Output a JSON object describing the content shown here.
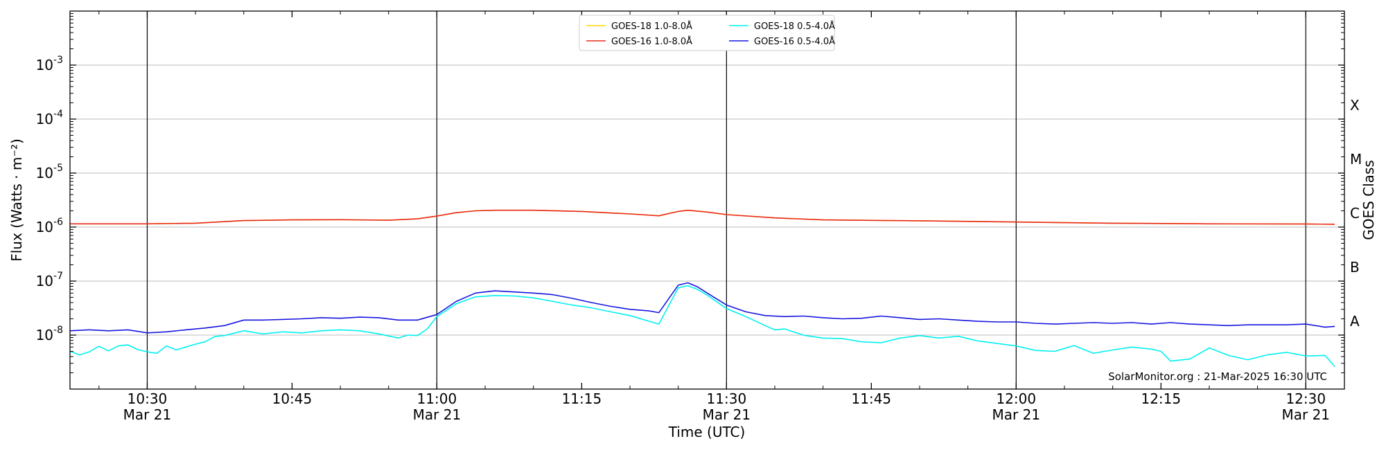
{
  "chart_data": {
    "type": "line",
    "xlabel": "Time (UTC)",
    "ylabel": "Flux (Watts · m⁻²)",
    "y2label": "GOES Class",
    "yscale": "log",
    "ylim": [
      1e-09,
      0.01
    ],
    "xlim": [
      "10:22",
      "12:34"
    ],
    "grid": "horizontal",
    "legend_position": "top-center",
    "credit": "SolarMonitor.org : 21-Mar-2025 16:30 UTC",
    "x_ticks": [
      {
        "time": "10:30",
        "date": "Mar 21"
      },
      {
        "time": "10:45",
        "date": ""
      },
      {
        "time": "11:00",
        "date": "Mar 21"
      },
      {
        "time": "11:15",
        "date": ""
      },
      {
        "time": "11:30",
        "date": "Mar 21"
      },
      {
        "time": "11:45",
        "date": ""
      },
      {
        "time": "12:00",
        "date": "Mar 21"
      },
      {
        "time": "12:15",
        "date": ""
      },
      {
        "time": "12:30",
        "date": "Mar 21"
      }
    ],
    "y_ticks": [
      {
        "exp": "-8",
        "value": 1e-08
      },
      {
        "exp": "-7",
        "value": 1e-07
      },
      {
        "exp": "-6",
        "value": 1e-06
      },
      {
        "exp": "-5",
        "value": 1e-05
      },
      {
        "exp": "-4",
        "value": 0.0001
      },
      {
        "exp": "-3",
        "value": 0.001
      }
    ],
    "goes_classes": [
      {
        "label": "A",
        "value": 1.8e-08
      },
      {
        "label": "B",
        "value": 1.8e-07
      },
      {
        "label": "C",
        "value": 1.8e-06
      },
      {
        "label": "M",
        "value": 1.8e-05
      },
      {
        "label": "X",
        "value": 0.00018
      }
    ],
    "vertical_lines": [
      "10:30",
      "11:00",
      "11:30",
      "12:00",
      "12:30"
    ],
    "series": [
      {
        "name": "GOES-18 1.0-8.0Å",
        "color": "#ffd700",
        "x": [
          "10:22",
          "10:30",
          "10:35",
          "10:40",
          "10:45",
          "10:50",
          "10:55",
          "10:58",
          "11:00",
          "11:02",
          "11:04",
          "11:06",
          "11:10",
          "11:15",
          "11:20",
          "11:23",
          "11:25",
          "11:26",
          "11:28",
          "11:30",
          "11:35",
          "11:40",
          "11:45",
          "11:50",
          "12:00",
          "12:10",
          "12:20",
          "12:30",
          "12:33"
        ],
        "values": [
          1.15e-06,
          1.15e-06,
          1.18e-06,
          1.32e-06,
          1.36e-06,
          1.37e-06,
          1.34e-06,
          1.42e-06,
          1.6e-06,
          1.85e-06,
          2e-06,
          2.05e-06,
          2.05e-06,
          1.95e-06,
          1.75e-06,
          1.62e-06,
          1.95e-06,
          2.05e-06,
          1.9e-06,
          1.7e-06,
          1.48e-06,
          1.36e-06,
          1.33e-06,
          1.31e-06,
          1.24e-06,
          1.18e-06,
          1.15e-06,
          1.14e-06,
          1.13e-06
        ]
      },
      {
        "name": "GOES-16 1.0-8.0Å",
        "color": "#e8291c",
        "x": [
          "10:22",
          "10:30",
          "10:35",
          "10:40",
          "10:45",
          "10:50",
          "10:55",
          "10:58",
          "11:00",
          "11:02",
          "11:04",
          "11:06",
          "11:10",
          "11:15",
          "11:20",
          "11:23",
          "11:25",
          "11:26",
          "11:28",
          "11:30",
          "11:35",
          "11:40",
          "11:45",
          "11:50",
          "12:00",
          "12:10",
          "12:20",
          "12:30",
          "12:33"
        ],
        "values": [
          1.15e-06,
          1.15e-06,
          1.18e-06,
          1.32e-06,
          1.36e-06,
          1.37e-06,
          1.34e-06,
          1.42e-06,
          1.6e-06,
          1.85e-06,
          2e-06,
          2.05e-06,
          2.05e-06,
          1.95e-06,
          1.75e-06,
          1.62e-06,
          1.95e-06,
          2.05e-06,
          1.9e-06,
          1.7e-06,
          1.48e-06,
          1.36e-06,
          1.33e-06,
          1.31e-06,
          1.24e-06,
          1.18e-06,
          1.15e-06,
          1.14e-06,
          1.13e-06
        ]
      },
      {
        "name": "GOES-18 0.5-4.0Å",
        "color": "#00f0f0",
        "x": [
          "10:22",
          "10:23",
          "10:24",
          "10:25",
          "10:26",
          "10:27",
          "10:28",
          "10:29",
          "10:30",
          "10:31",
          "10:32",
          "10:33",
          "10:34",
          "10:35",
          "10:36",
          "10:37",
          "10:38",
          "10:40",
          "10:42",
          "10:44",
          "10:46",
          "10:48",
          "10:50",
          "10:52",
          "10:54",
          "10:56",
          "10:57",
          "10:58",
          "10:59",
          "11:00",
          "11:02",
          "11:04",
          "11:06",
          "11:08",
          "11:10",
          "11:12",
          "11:14",
          "11:16",
          "11:18",
          "11:20",
          "11:22",
          "11:23",
          "11:25",
          "11:26",
          "11:27",
          "11:28",
          "11:30",
          "11:32",
          "11:34",
          "11:35",
          "11:36",
          "11:38",
          "11:40",
          "11:42",
          "11:44",
          "11:46",
          "11:48",
          "11:50",
          "11:52",
          "11:54",
          "11:56",
          "11:58",
          "12:00",
          "12:02",
          "12:04",
          "12:06",
          "12:08",
          "12:10",
          "12:12",
          "12:14",
          "12:15",
          "12:16",
          "12:18",
          "12:20",
          "12:22",
          "12:24",
          "12:26",
          "12:28",
          "12:30",
          "12:32",
          "12:33"
        ],
        "values": [
          5e-09,
          4.3e-09,
          4.9e-09,
          6.2e-09,
          5.1e-09,
          6.3e-09,
          6.6e-09,
          5.4e-09,
          4.9e-09,
          4.6e-09,
          6.3e-09,
          5.3e-09,
          6e-09,
          6.8e-09,
          7.5e-09,
          9.4e-09,
          9.8e-09,
          1.2e-08,
          1.05e-08,
          1.15e-08,
          1.1e-08,
          1.2e-08,
          1.25e-08,
          1.2e-08,
          1.05e-08,
          8.8e-09,
          1e-08,
          9.8e-09,
          1.3e-08,
          2.2e-08,
          3.8e-08,
          5.1e-08,
          5.4e-08,
          5.3e-08,
          4.9e-08,
          4.2e-08,
          3.6e-08,
          3.2e-08,
          2.7e-08,
          2.3e-08,
          1.8e-08,
          1.6e-08,
          7.5e-08,
          8.2e-08,
          7e-08,
          5.5e-08,
          3.1e-08,
          2.2e-08,
          1.5e-08,
          1.25e-08,
          1.3e-08,
          9.9e-09,
          8.8e-09,
          8.6e-09,
          7.5e-09,
          7.2e-09,
          8.8e-09,
          9.8e-09,
          8.8e-09,
          9.5e-09,
          7.8e-09,
          7e-09,
          6.3e-09,
          5.2e-09,
          5e-09,
          6.4e-09,
          4.6e-09,
          5.3e-09,
          6e-09,
          5.5e-09,
          5e-09,
          3.3e-09,
          3.6e-09,
          5.8e-09,
          4.2e-09,
          3.5e-09,
          4.3e-09,
          4.8e-09,
          4.1e-09,
          4.2e-09,
          2.6e-09
        ]
      },
      {
        "name": "GOES-16 0.5-4.0Å",
        "color": "#1515e0",
        "x": [
          "10:22",
          "10:24",
          "10:26",
          "10:28",
          "10:30",
          "10:32",
          "10:34",
          "10:36",
          "10:38",
          "10:40",
          "10:42",
          "10:44",
          "10:46",
          "10:48",
          "10:50",
          "10:52",
          "10:54",
          "10:56",
          "10:58",
          "11:00",
          "11:02",
          "11:04",
          "11:06",
          "11:08",
          "11:10",
          "11:12",
          "11:14",
          "11:16",
          "11:18",
          "11:20",
          "11:22",
          "11:23",
          "11:25",
          "11:26",
          "11:27",
          "11:28",
          "11:30",
          "11:32",
          "11:34",
          "11:36",
          "11:38",
          "11:40",
          "11:42",
          "11:44",
          "11:46",
          "11:48",
          "11:50",
          "11:52",
          "11:54",
          "11:56",
          "11:58",
          "12:00",
          "12:02",
          "12:04",
          "12:06",
          "12:08",
          "12:10",
          "12:12",
          "12:14",
          "12:16",
          "12:18",
          "12:20",
          "12:22",
          "12:24",
          "12:26",
          "12:28",
          "12:30",
          "12:32",
          "12:33"
        ],
        "values": [
          1.2e-08,
          1.25e-08,
          1.2e-08,
          1.25e-08,
          1.1e-08,
          1.15e-08,
          1.25e-08,
          1.35e-08,
          1.5e-08,
          1.9e-08,
          1.9e-08,
          1.95e-08,
          2e-08,
          2.1e-08,
          2.05e-08,
          2.15e-08,
          2.1e-08,
          1.9e-08,
          1.9e-08,
          2.4e-08,
          4.2e-08,
          6e-08,
          6.6e-08,
          6.3e-08,
          6e-08,
          5.6e-08,
          4.8e-08,
          4e-08,
          3.4e-08,
          3e-08,
          2.8e-08,
          2.6e-08,
          8.4e-08,
          9.3e-08,
          7.8e-08,
          6e-08,
          3.6e-08,
          2.7e-08,
          2.3e-08,
          2.2e-08,
          2.25e-08,
          2.1e-08,
          2e-08,
          2.05e-08,
          2.25e-08,
          2.1e-08,
          1.95e-08,
          2e-08,
          1.9e-08,
          1.8e-08,
          1.75e-08,
          1.75e-08,
          1.65e-08,
          1.6e-08,
          1.65e-08,
          1.7e-08,
          1.65e-08,
          1.7e-08,
          1.6e-08,
          1.7e-08,
          1.6e-08,
          1.55e-08,
          1.5e-08,
          1.55e-08,
          1.55e-08,
          1.55e-08,
          1.6e-08,
          1.4e-08,
          1.45e-08
        ]
      }
    ]
  }
}
